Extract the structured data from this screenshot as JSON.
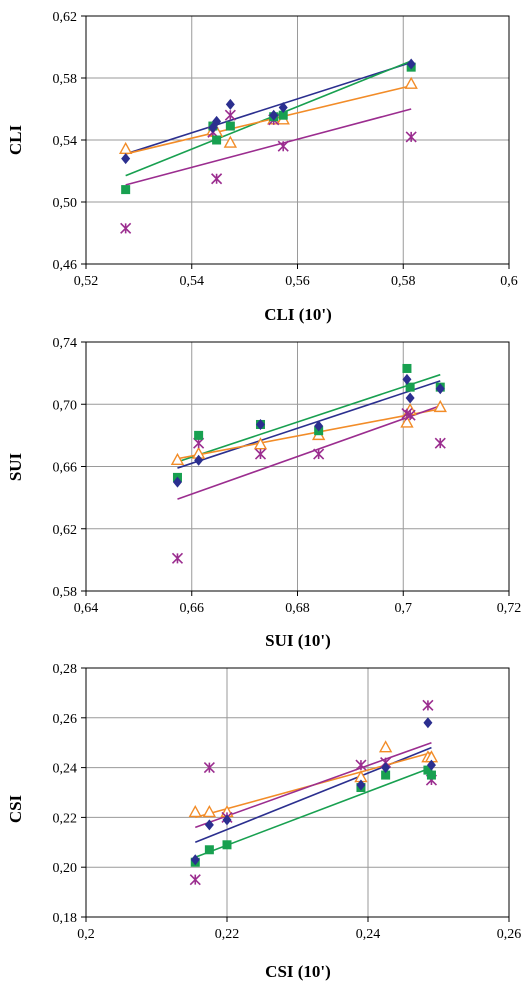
{
  "colors": {
    "blue": "#2B2F8F",
    "green": "#18A050",
    "orange": "#F28C28",
    "purple": "#9B2D8F"
  },
  "chart_data": [
    {
      "type": "scatter",
      "xlabel": "CLI (10')",
      "ylabel": "CLI",
      "xlim": [
        0.52,
        0.6
      ],
      "ylim": [
        0.46,
        0.62
      ],
      "xticks": [
        "0,52",
        "0,54",
        "0,56",
        "0,58",
        "0,6"
      ],
      "yticks": [
        "0,46",
        "0,50",
        "0,54",
        "0,58",
        "0,62"
      ],
      "grid": true,
      "series": [
        {
          "marker": "diamond",
          "color": "#2B2F8F",
          "x": [
            0.5275,
            0.544,
            0.5447,
            0.5473,
            0.5555,
            0.5573,
            0.5815
          ],
          "y": [
            0.528,
            0.548,
            0.552,
            0.563,
            0.556,
            0.561,
            0.589
          ],
          "trend": [
            [
              0.5275,
              0.531
            ],
            [
              0.5815,
              0.59
            ]
          ]
        },
        {
          "marker": "square",
          "color": "#18A050",
          "x": [
            0.5275,
            0.544,
            0.5447,
            0.5473,
            0.5555,
            0.5573,
            0.5815
          ],
          "y": [
            0.508,
            0.549,
            0.54,
            0.549,
            0.555,
            0.556,
            0.587
          ],
          "trend": [
            [
              0.5275,
              0.517
            ],
            [
              0.5815,
              0.591
            ]
          ]
        },
        {
          "marker": "triangle",
          "color": "#F28C28",
          "x": [
            0.5275,
            0.544,
            0.5447,
            0.5473,
            0.5555,
            0.5573,
            0.5815
          ],
          "y": [
            0.534,
            0.546,
            0.545,
            0.538,
            0.553,
            0.553,
            0.576
          ],
          "trend": [
            [
              0.5275,
              0.531
            ],
            [
              0.5815,
              0.575
            ]
          ]
        },
        {
          "marker": "asterisk",
          "color": "#9B2D8F",
          "x": [
            0.5275,
            0.544,
            0.5447,
            0.5473,
            0.5555,
            0.5573,
            0.5815
          ],
          "y": [
            0.483,
            0.545,
            0.515,
            0.556,
            0.553,
            0.536,
            0.542
          ],
          "trend": [
            [
              0.5275,
              0.511
            ],
            [
              0.5815,
              0.56
            ]
          ]
        }
      ]
    },
    {
      "type": "scatter",
      "xlabel": "SUI (10')",
      "ylabel": "SUI",
      "xlim": [
        0.64,
        0.72
      ],
      "ylim": [
        0.58,
        0.74
      ],
      "xticks": [
        "0,64",
        "0,66",
        "0,68",
        "0,7",
        "0,72"
      ],
      "yticks": [
        "0,58",
        "0,62",
        "0,66",
        "0,70",
        "0,74"
      ],
      "grid": true,
      "series": [
        {
          "marker": "diamond",
          "color": "#2B2F8F",
          "x": [
            0.6573,
            0.6613,
            0.673,
            0.684,
            0.7007,
            0.7013,
            0.707
          ],
          "y": [
            0.65,
            0.664,
            0.687,
            0.686,
            0.716,
            0.704,
            0.71
          ],
          "trend": [
            [
              0.6573,
              0.659
            ],
            [
              0.707,
              0.715
            ]
          ]
        },
        {
          "marker": "square",
          "color": "#18A050",
          "x": [
            0.6573,
            0.6613,
            0.673,
            0.684,
            0.7007,
            0.7013,
            0.707
          ],
          "y": [
            0.653,
            0.68,
            0.687,
            0.683,
            0.723,
            0.711,
            0.711
          ],
          "trend": [
            [
              0.6573,
              0.663
            ],
            [
              0.707,
              0.719
            ]
          ]
        },
        {
          "marker": "triangle",
          "color": "#F28C28",
          "x": [
            0.6573,
            0.6613,
            0.673,
            0.684,
            0.7007,
            0.7013,
            0.707
          ],
          "y": [
            0.664,
            0.668,
            0.674,
            0.68,
            0.688,
            0.696,
            0.698
          ],
          "trend": [
            [
              0.6573,
              0.665
            ],
            [
              0.707,
              0.697
            ]
          ]
        },
        {
          "marker": "asterisk",
          "color": "#9B2D8F",
          "x": [
            0.6573,
            0.6613,
            0.673,
            0.684,
            0.7007,
            0.7013,
            0.707
          ],
          "y": [
            0.601,
            0.675,
            0.668,
            0.668,
            0.694,
            0.693,
            0.675
          ],
          "trend": [
            [
              0.6573,
              0.639
            ],
            [
              0.707,
              0.699
            ]
          ]
        }
      ]
    },
    {
      "type": "scatter",
      "xlabel": "CSI (10')",
      "ylabel": "CSI",
      "xlim": [
        0.2,
        0.26
      ],
      "ylim": [
        0.18,
        0.28
      ],
      "xticks": [
        "0,2",
        "0,22",
        "0,24",
        "0,26"
      ],
      "yticks": [
        "0,18",
        "0,20",
        "0,22",
        "0,24",
        "0,26",
        "0,28"
      ],
      "grid": true,
      "series": [
        {
          "marker": "diamond",
          "color": "#2B2F8F",
          "x": [
            0.2155,
            0.2175,
            0.22,
            0.239,
            0.2425,
            0.2485,
            0.249
          ],
          "y": [
            0.203,
            0.217,
            0.219,
            0.233,
            0.24,
            0.258,
            0.241
          ],
          "trend": [
            [
              0.2155,
              0.21
            ],
            [
              0.249,
              0.248
            ]
          ]
        },
        {
          "marker": "square",
          "color": "#18A050",
          "x": [
            0.2155,
            0.2175,
            0.22,
            0.239,
            0.2425,
            0.2485,
            0.249
          ],
          "y": [
            0.202,
            0.207,
            0.209,
            0.232,
            0.237,
            0.239,
            0.237
          ],
          "trend": [
            [
              0.2155,
              0.204
            ],
            [
              0.249,
              0.24
            ]
          ]
        },
        {
          "marker": "triangle",
          "color": "#F28C28",
          "x": [
            0.2155,
            0.2175,
            0.22,
            0.239,
            0.2425,
            0.2485,
            0.249
          ],
          "y": [
            0.222,
            0.222,
            0.222,
            0.236,
            0.248,
            0.244,
            0.244
          ],
          "trend": [
            [
              0.2155,
              0.22
            ],
            [
              0.249,
              0.246
            ]
          ]
        },
        {
          "marker": "asterisk",
          "color": "#9B2D8F",
          "x": [
            0.2155,
            0.2175,
            0.22,
            0.239,
            0.2425,
            0.2485,
            0.249
          ],
          "y": [
            0.195,
            0.24,
            0.22,
            0.241,
            0.242,
            0.265,
            0.235
          ],
          "trend": [
            [
              0.2155,
              0.216
            ],
            [
              0.249,
              0.25
            ]
          ]
        }
      ]
    }
  ]
}
